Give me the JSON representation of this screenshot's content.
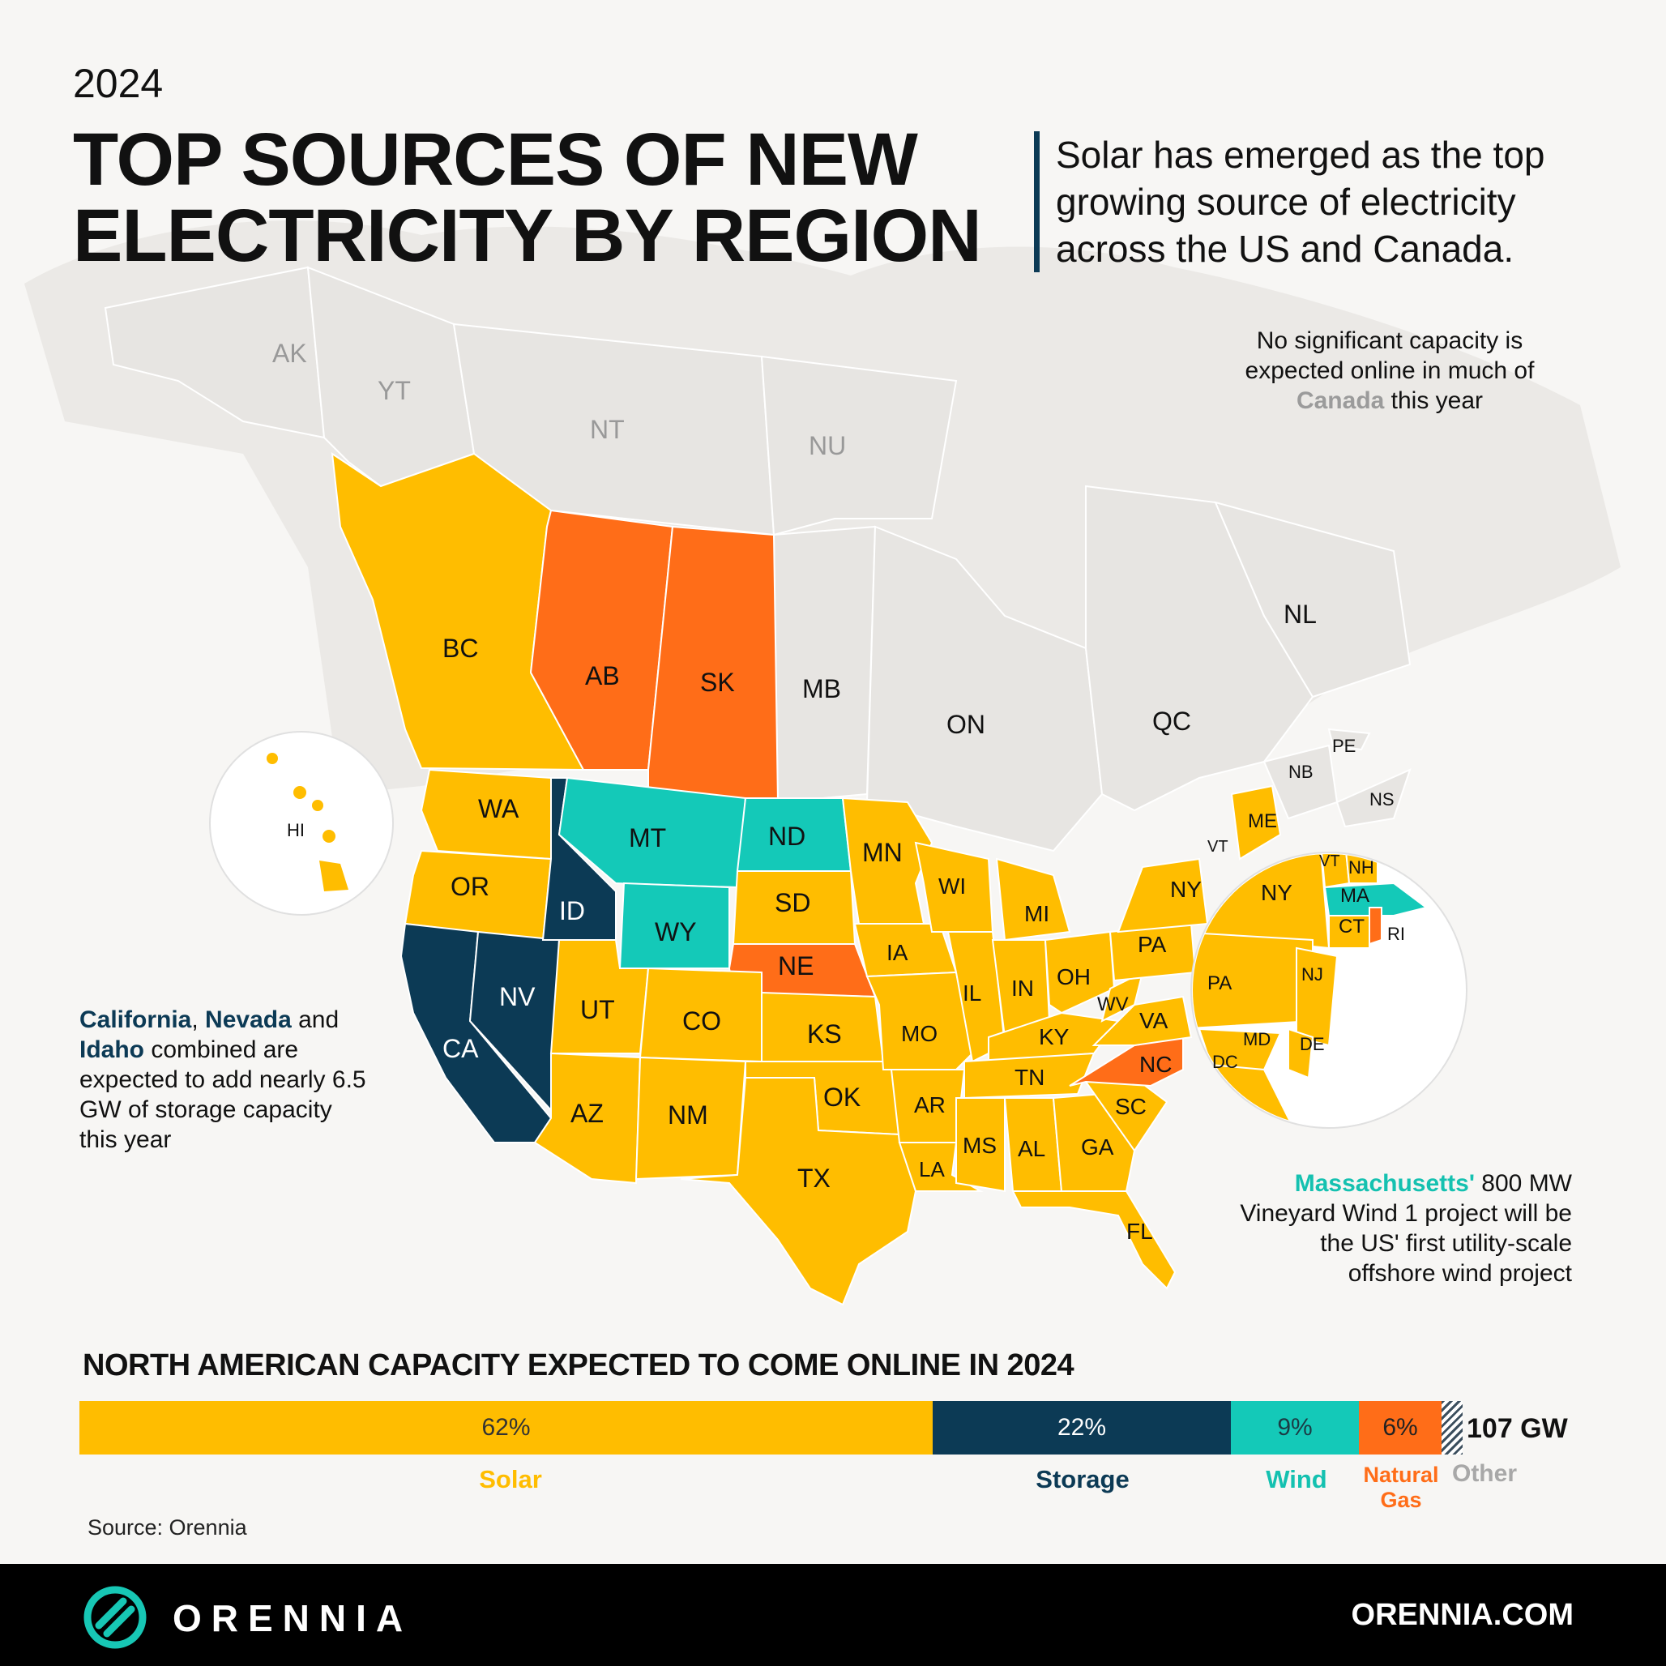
{
  "year": "2024",
  "title": "TOP SOURCES OF NEW ELECTRICITY BY REGION",
  "subtitle": "Solar has emerged as the top growing source of electricity across the US and Canada.",
  "annotations": {
    "canada": {
      "pre": "No significant capacity is expected online in much of ",
      "highlight": "Canada",
      "post": " this year"
    },
    "storage": {
      "h1": "California",
      "sep1": ", ",
      "h2": "Nevada",
      "sep2": " and ",
      "h3": "Idaho",
      "post": " combined are expected to add nearly 6.5 GW of storage capacity this year"
    },
    "massachusetts": {
      "highlight": "Massachusetts'",
      "post": " 800 MW Vineyard Wind 1 project will be the US' first utility-scale offshore wind project"
    }
  },
  "colors": {
    "solar": "#ffbd00",
    "storage": "#0c3a55",
    "wind": "#14c9b8",
    "natural_gas": "#ff6d18",
    "none": "#e7e5e2"
  },
  "regions": [
    {
      "code": "AK",
      "source": "none"
    },
    {
      "code": "YT",
      "source": "none"
    },
    {
      "code": "NT",
      "source": "none"
    },
    {
      "code": "NU",
      "source": "none"
    },
    {
      "code": "BC",
      "source": "solar"
    },
    {
      "code": "AB",
      "source": "natural_gas"
    },
    {
      "code": "SK",
      "source": "natural_gas"
    },
    {
      "code": "MB",
      "source": "none"
    },
    {
      "code": "ON",
      "source": "none"
    },
    {
      "code": "QC",
      "source": "none"
    },
    {
      "code": "NL",
      "source": "none"
    },
    {
      "code": "PE",
      "source": "none"
    },
    {
      "code": "NB",
      "source": "none"
    },
    {
      "code": "NS",
      "source": "none"
    },
    {
      "code": "HI",
      "source": "solar"
    },
    {
      "code": "WA",
      "source": "solar"
    },
    {
      "code": "OR",
      "source": "solar"
    },
    {
      "code": "CA",
      "source": "storage"
    },
    {
      "code": "NV",
      "source": "storage"
    },
    {
      "code": "ID",
      "source": "storage"
    },
    {
      "code": "MT",
      "source": "wind"
    },
    {
      "code": "WY",
      "source": "wind"
    },
    {
      "code": "ND",
      "source": "wind"
    },
    {
      "code": "SD",
      "source": "solar"
    },
    {
      "code": "NE",
      "source": "natural_gas"
    },
    {
      "code": "UT",
      "source": "solar"
    },
    {
      "code": "CO",
      "source": "solar"
    },
    {
      "code": "AZ",
      "source": "solar"
    },
    {
      "code": "NM",
      "source": "solar"
    },
    {
      "code": "KS",
      "source": "solar"
    },
    {
      "code": "OK",
      "source": "solar"
    },
    {
      "code": "TX",
      "source": "solar"
    },
    {
      "code": "MN",
      "source": "solar"
    },
    {
      "code": "IA",
      "source": "solar"
    },
    {
      "code": "MO",
      "source": "solar"
    },
    {
      "code": "AR",
      "source": "solar"
    },
    {
      "code": "LA",
      "source": "solar"
    },
    {
      "code": "WI",
      "source": "solar"
    },
    {
      "code": "IL",
      "source": "solar"
    },
    {
      "code": "MI",
      "source": "solar"
    },
    {
      "code": "IN",
      "source": "solar"
    },
    {
      "code": "OH",
      "source": "solar"
    },
    {
      "code": "KY",
      "source": "solar"
    },
    {
      "code": "TN",
      "source": "solar"
    },
    {
      "code": "MS",
      "source": "solar"
    },
    {
      "code": "AL",
      "source": "solar"
    },
    {
      "code": "GA",
      "source": "solar"
    },
    {
      "code": "FL",
      "source": "solar"
    },
    {
      "code": "SC",
      "source": "solar"
    },
    {
      "code": "NC",
      "source": "natural_gas"
    },
    {
      "code": "VA",
      "source": "solar"
    },
    {
      "code": "WV",
      "source": "solar"
    },
    {
      "code": "PA",
      "source": "solar"
    },
    {
      "code": "NY",
      "source": "solar"
    },
    {
      "code": "VT",
      "source": "solar"
    },
    {
      "code": "NH",
      "source": "solar"
    },
    {
      "code": "ME",
      "source": "solar"
    },
    {
      "code": "MA",
      "source": "wind"
    },
    {
      "code": "CT",
      "source": "solar"
    },
    {
      "code": "RI",
      "source": "natural_gas"
    },
    {
      "code": "NJ",
      "source": "solar"
    },
    {
      "code": "DE",
      "source": "solar"
    },
    {
      "code": "MD",
      "source": "solar"
    },
    {
      "code": "DC",
      "source": "solar"
    }
  ],
  "chart_data": {
    "type": "bar",
    "title": "NORTH AMERICAN CAPACITY EXPECTED TO COME ONLINE IN 2024",
    "total": "107 GW",
    "categories": [
      "Solar",
      "Storage",
      "Wind",
      "Natural Gas",
      "Other"
    ],
    "values": [
      62,
      22,
      9,
      6,
      1
    ],
    "labels": [
      "62%",
      "22%",
      "9%",
      "6%",
      ""
    ],
    "legend": {
      "solar": "Solar",
      "storage": "Storage",
      "wind": "Wind",
      "gas_line1": "Natural",
      "gas_line2": "Gas",
      "other": "Other"
    }
  },
  "source": "Source: Orennia",
  "footer": {
    "brand": "ORENNIA",
    "site": "ORENNIA.COM",
    "logo_icon": "orennia-logo-icon"
  }
}
